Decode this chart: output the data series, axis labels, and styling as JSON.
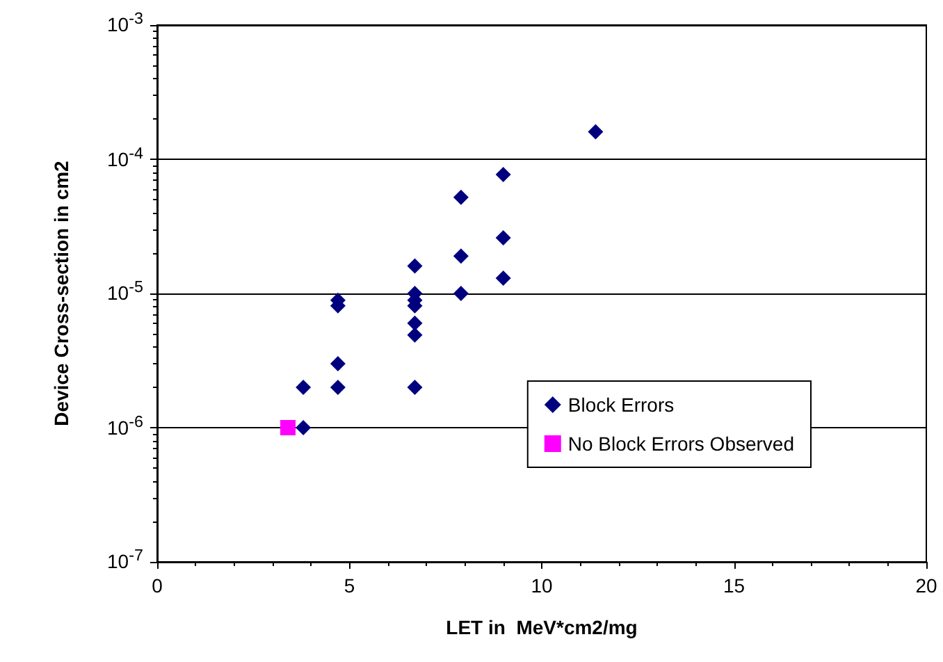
{
  "chart_data": {
    "type": "scatter",
    "xlabel": "LET in  MeV*cm2/mg",
    "ylabel": "Device Cross-section in cm2",
    "series": [
      {
        "name": "Block Errors",
        "color": "#00007f",
        "marker": "diamond",
        "x": [
          11.4,
          9.0,
          9.0,
          9.0,
          7.9,
          7.9,
          7.9,
          6.7,
          6.7,
          6.7,
          6.7,
          6.7,
          6.7,
          6.7,
          4.7,
          4.7,
          4.7,
          4.7,
          3.8,
          3.8
        ],
        "values": [
          0.00016,
          7.7e-05,
          2.6e-05,
          1.3e-05,
          5.2e-05,
          1.9e-05,
          1e-05,
          1.6e-05,
          1e-05,
          8.9e-06,
          8.1e-06,
          6e-06,
          4.9e-06,
          2e-06,
          8.9e-06,
          8.1e-06,
          3e-06,
          2e-06,
          2e-06,
          1e-06
        ]
      },
      {
        "name": "No Block Errors Observed",
        "color": "#ff00ff",
        "marker": "square",
        "x": [
          3.4
        ],
        "values": [
          1e-06
        ]
      }
    ],
    "xlim": [
      0,
      20
    ],
    "xticks": [
      0,
      5,
      10,
      15,
      20
    ],
    "ylim": [
      1e-07,
      0.001
    ],
    "yticks": [
      {
        "value": 1e-07,
        "label": "10$^{-7}$"
      },
      {
        "value": 1e-06,
        "label": "10$^{-6}$"
      },
      {
        "value": 1e-05,
        "label": "10$^{-5}$"
      },
      {
        "value": 0.0001,
        "label": "10$^{-4}$"
      },
      {
        "value": 0.001,
        "label": "10$^{-3}$"
      }
    ],
    "log": "y",
    "grid": "y",
    "legend": "lower right"
  }
}
